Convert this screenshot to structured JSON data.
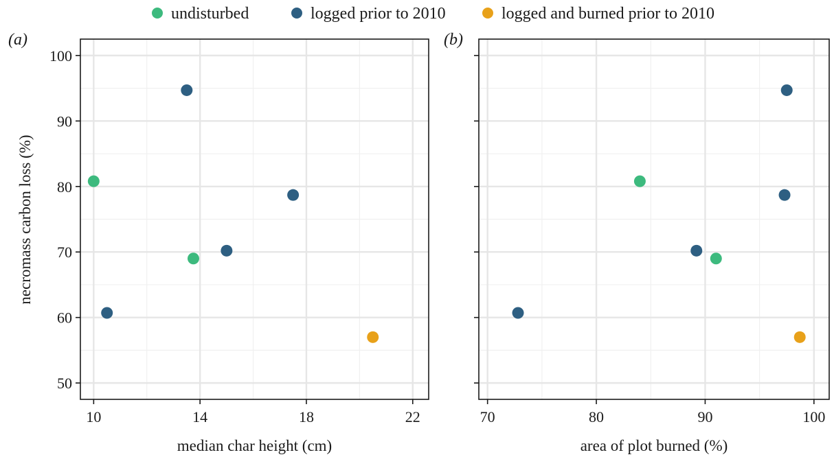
{
  "legend": {
    "items": [
      {
        "label": "undisturbed",
        "color": "#3dba7e"
      },
      {
        "label": "logged prior to 2010",
        "color": "#2e5f82"
      },
      {
        "label": "logged and burned prior to 2010",
        "color": "#e8a11a"
      }
    ]
  },
  "y_axis_title": "necromass carbon loss (%)",
  "chart_data": [
    {
      "type": "scatter",
      "panel_label": "(a)",
      "xlabel": "median char height (cm)",
      "ylabel": "necromass carbon loss (%)",
      "xlim": [
        9.5,
        22.6
      ],
      "ylim": [
        47.5,
        102.5
      ],
      "xticks": [
        10,
        14,
        18,
        22
      ],
      "yticks": [
        50,
        60,
        70,
        80,
        90,
        100
      ],
      "grid": true,
      "legend_position": "top",
      "series": [
        {
          "name": "undisturbed",
          "color": "#3dba7e",
          "points": [
            {
              "x": 10.0,
              "y": 80.8
            },
            {
              "x": 13.75,
              "y": 69.0
            }
          ]
        },
        {
          "name": "logged prior to 2010",
          "color": "#2e5f82",
          "points": [
            {
              "x": 13.5,
              "y": 94.7
            },
            {
              "x": 17.5,
              "y": 78.7
            },
            {
              "x": 15.0,
              "y": 70.2
            },
            {
              "x": 10.5,
              "y": 60.7
            }
          ]
        },
        {
          "name": "logged and burned prior to 2010",
          "color": "#e8a11a",
          "points": [
            {
              "x": 20.5,
              "y": 57.0
            }
          ]
        }
      ]
    },
    {
      "type": "scatter",
      "panel_label": "(b)",
      "xlabel": "area of plot burned (%)",
      "ylabel": "",
      "xlim": [
        69.2,
        101.4
      ],
      "ylim": [
        47.5,
        102.5
      ],
      "xticks": [
        70,
        80,
        90,
        100
      ],
      "yticks": [
        50,
        60,
        70,
        80,
        90,
        100
      ],
      "grid": true,
      "series": [
        {
          "name": "undisturbed",
          "color": "#3dba7e",
          "points": [
            {
              "x": 84.0,
              "y": 80.8
            },
            {
              "x": 91.0,
              "y": 69.0
            }
          ]
        },
        {
          "name": "logged prior to 2010",
          "color": "#2e5f82",
          "points": [
            {
              "x": 97.5,
              "y": 94.7
            },
            {
              "x": 97.3,
              "y": 78.7
            },
            {
              "x": 89.2,
              "y": 70.2
            },
            {
              "x": 72.8,
              "y": 60.7
            }
          ]
        },
        {
          "name": "logged and burned prior to 2010",
          "color": "#e8a11a",
          "points": [
            {
              "x": 98.7,
              "y": 57.0
            }
          ]
        }
      ]
    }
  ]
}
